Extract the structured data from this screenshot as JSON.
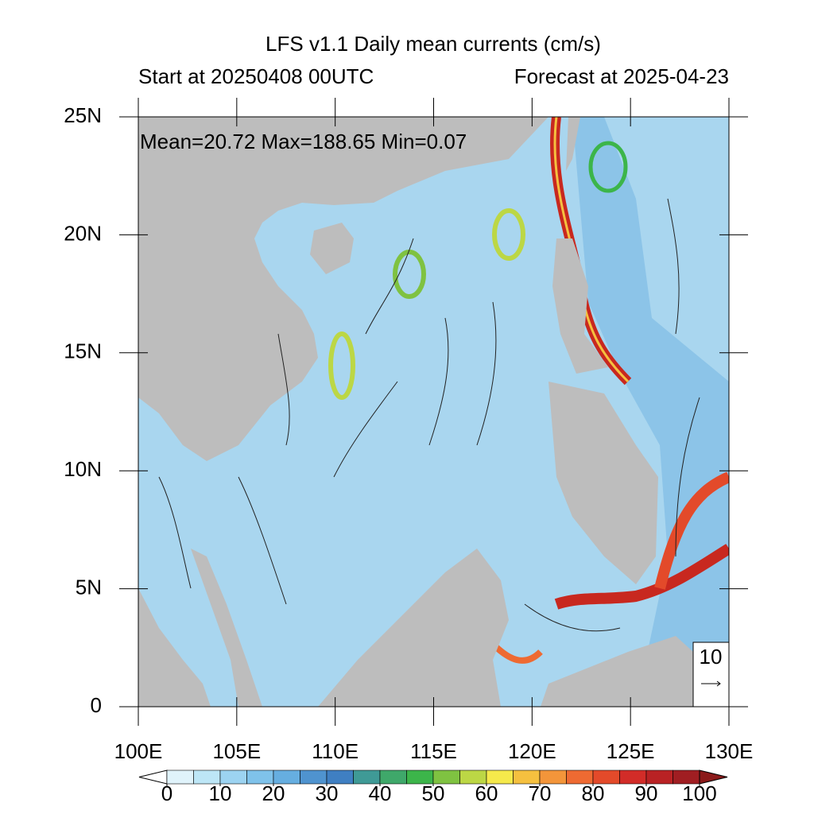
{
  "title": "LFS v1.1 Daily mean currents (cm/s)",
  "subtitle_left": "Start at 20250408 00UTC",
  "subtitle_right": "Forecast at 2025-04-23",
  "stats": "Mean=20.72  Max=188.65  Min=0.07",
  "map": {
    "xlim": [
      100,
      130
    ],
    "ylim": [
      0,
      25
    ],
    "xticks": [
      {
        "value": 100,
        "label": "100E"
      },
      {
        "value": 105,
        "label": "105E"
      },
      {
        "value": 110,
        "label": "110E"
      },
      {
        "value": 115,
        "label": "115E"
      },
      {
        "value": 120,
        "label": "120E"
      },
      {
        "value": 125,
        "label": "125E"
      },
      {
        "value": 130,
        "label": "130E"
      }
    ],
    "yticks": [
      0,
      {
        "value": 5,
        "label": "5N"
      },
      {
        "value": 10,
        "label": "10N"
      },
      {
        "value": 15,
        "label": "15N"
      },
      {
        "value": 20,
        "label": "20N"
      },
      {
        "value": 25,
        "label": "25N"
      }
    ]
  },
  "colorbar": {
    "lim": [
      0,
      100
    ],
    "ticks": [
      0,
      10,
      20,
      30,
      40,
      50,
      60,
      70,
      80,
      90,
      100
    ],
    "colors": [
      "#ffffff",
      "#e0f3fb",
      "#bde6f6",
      "#9cd3f1",
      "#7fc2ea",
      "#66aee0",
      "#4f93cf",
      "#3f7fc2",
      "#3f9a96",
      "#3fa86a",
      "#3cb54a",
      "#7fc241",
      "#bcd745",
      "#f5e94b",
      "#f5c03f",
      "#f3953a",
      "#ee6a32",
      "#e34a2a",
      "#d22c28",
      "#b92224",
      "#a01e22",
      "#8b1a1a"
    ]
  },
  "reference_vector": 10
}
